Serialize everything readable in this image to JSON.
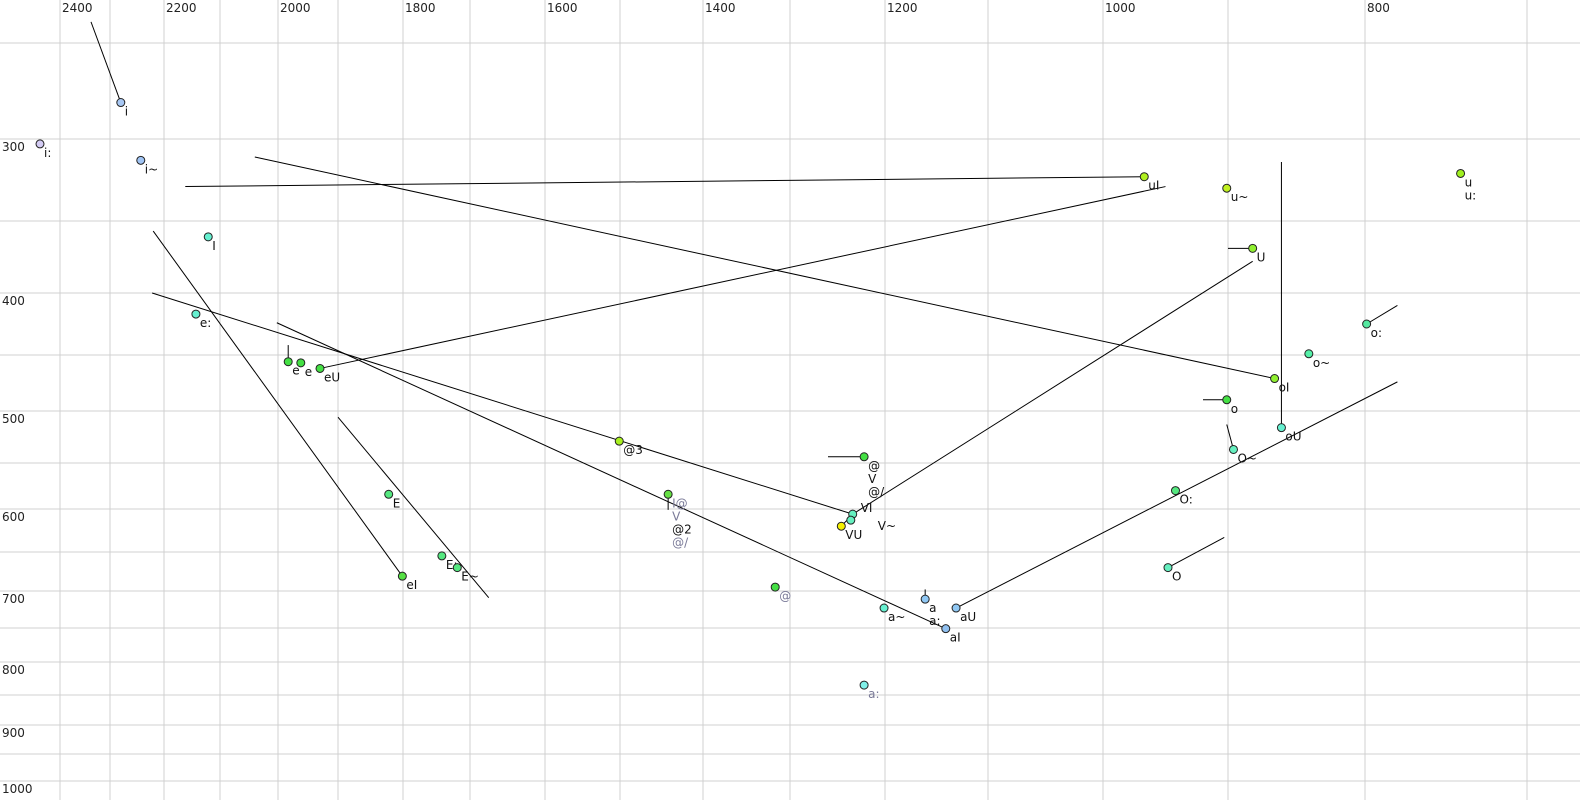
{
  "chart_data": {
    "type": "scatter",
    "title": "",
    "xlabel": "",
    "ylabel": "",
    "x_axis": {
      "reversed": true,
      "scale": "nonlinear",
      "grid_step": 100,
      "tick_labels": [
        "2400",
        "2200",
        "2000",
        "1800",
        "1600",
        "1400",
        "1200",
        "1000",
        "800"
      ],
      "ticks": [
        2400,
        2200,
        2000,
        1800,
        1600,
        1400,
        1200,
        1000,
        800
      ],
      "range": [
        2440,
        700
      ]
    },
    "y_axis": {
      "reversed": true,
      "scale": "nonlinear",
      "grid_step": 50,
      "tick_labels": [
        "300",
        "400",
        "500",
        "600",
        "700",
        "800",
        "900",
        "1000"
      ],
      "ticks": [
        300,
        400,
        500,
        600,
        700,
        800,
        900,
        1000
      ],
      "range": [
        239,
        1000
      ]
    },
    "grid": true,
    "points": [
      {
        "f2": 2280,
        "f1": 281,
        "color": "#a8c8f4",
        "labels": [
          {
            "text": "i"
          }
        ]
      },
      {
        "f2": 2440,
        "f1": 303,
        "color": "#d4ccf4",
        "labels": [
          {
            "text": "i:"
          }
        ]
      },
      {
        "f2": 2243,
        "f1": 313,
        "color": "#a0c4f4",
        "labels": [
          {
            "text": "i~"
          }
        ]
      },
      {
        "f2": 2121,
        "f1": 361,
        "color": "#66f0d0",
        "labels": [
          {
            "text": "I"
          }
        ]
      },
      {
        "f2": 2143,
        "f1": 417,
        "color": "#66f0d0",
        "labels": [
          {
            "text": "e:"
          }
        ]
      },
      {
        "f2": 1983,
        "f1": 456,
        "color": "#44e044",
        "labels": [
          {
            "text": "e"
          }
        ]
      },
      {
        "f2": 1962,
        "f1": 457,
        "color": "#44e044",
        "labels": [
          {
            "text": "e"
          }
        ]
      },
      {
        "f2": 1930,
        "f1": 462,
        "color": "#44e044",
        "labels": [
          {
            "text": "eU"
          }
        ]
      },
      {
        "f2": 1501,
        "f1": 529,
        "color": "#a8f020",
        "labels": [
          {
            "text": "@3"
          }
        ]
      },
      {
        "f2": 1222,
        "f1": 544,
        "color": "#44e044",
        "labels": [
          {
            "text": "@"
          },
          {
            "text": "V"
          },
          {
            "text": "@/"
          }
        ]
      },
      {
        "f2": 1234,
        "f1": 606,
        "color": "#66f0c0",
        "labels": [
          {
            "text": "VI"
          }
        ]
      },
      {
        "f2": 1236,
        "f1": 613,
        "color": "#66f0c0",
        "labels": [
          {
            "text": "V~"
          }
        ]
      },
      {
        "f2": 1246,
        "f1": 620,
        "color": "#f4f000",
        "labels": [
          {
            "text": "VU"
          }
        ]
      },
      {
        "f2": 1442,
        "f1": 584,
        "color": "#66e044",
        "labels": [
          {
            "text": "I@",
            "gray": true
          },
          {
            "text": "V",
            "gray": true
          },
          {
            "text": "@2"
          },
          {
            "text": "@/",
            "gray": true
          }
        ]
      },
      {
        "f2": 1317,
        "f1": 695,
        "color": "#44e044",
        "labels": [
          {
            "text": "@",
            "gray": true
          }
        ]
      },
      {
        "f2": 1201,
        "f1": 723,
        "color": "#66f0d0",
        "labels": [
          {
            "text": "a~"
          }
        ]
      },
      {
        "f2": 1161,
        "f1": 711,
        "color": "#90c8f4",
        "labels": [
          {
            "text": "a"
          },
          {
            "text": "a:"
          }
        ]
      },
      {
        "f2": 1131,
        "f1": 723,
        "color": "#90c8f4",
        "labels": [
          {
            "text": "aU"
          }
        ]
      },
      {
        "f2": 1141,
        "f1": 751,
        "color": "#90c0f0",
        "labels": [
          {
            "text": "aI"
          }
        ]
      },
      {
        "f2": 1222,
        "f1": 835,
        "color": "#80f0e8",
        "labels": [
          {
            "text": "a:",
            "gray": true
          }
        ]
      },
      {
        "f2": 1822,
        "f1": 584,
        "color": "#55e880",
        "labels": [
          {
            "text": "E"
          }
        ]
      },
      {
        "f2": 1742,
        "f1": 655,
        "color": "#55e880",
        "labels": [
          {
            "text": "E:"
          }
        ]
      },
      {
        "f2": 1719,
        "f1": 670,
        "color": "#55e880",
        "labels": [
          {
            "text": "E~"
          }
        ]
      },
      {
        "f2": 1801,
        "f1": 681,
        "color": "#55e044",
        "labels": [
          {
            "text": "eI"
          }
        ]
      },
      {
        "f2": 967,
        "f1": 323,
        "color": "#b0f020",
        "labels": [
          {
            "text": "uI"
          }
        ]
      },
      {
        "f2": 901,
        "f1": 330,
        "color": "#c0f020",
        "labels": [
          {
            "text": "u~"
          }
        ]
      },
      {
        "f2": 882,
        "f1": 369,
        "color": "#90f030",
        "labels": [
          {
            "text": "U"
          }
        ]
      },
      {
        "f2": 741,
        "f1": 321,
        "color": "#a0f020",
        "labels": [
          {
            "text": "u"
          },
          {
            "text": "u:"
          }
        ]
      },
      {
        "f2": 799,
        "f1": 425,
        "color": "#55e8a0",
        "labels": [
          {
            "text": "o:"
          }
        ]
      },
      {
        "f2": 841,
        "f1": 449,
        "color": "#55f0a8",
        "labels": [
          {
            "text": "o~"
          }
        ]
      },
      {
        "f2": 866,
        "f1": 471,
        "color": "#90f030",
        "labels": [
          {
            "text": "oI"
          }
        ]
      },
      {
        "f2": 901,
        "f1": 490,
        "color": "#44e044",
        "labels": [
          {
            "text": "o"
          }
        ]
      },
      {
        "f2": 861,
        "f1": 516,
        "color": "#66f0d0",
        "labels": [
          {
            "text": "oU"
          }
        ]
      },
      {
        "f2": 896,
        "f1": 537,
        "color": "#66f0c0",
        "labels": [
          {
            "text": "O~"
          }
        ]
      },
      {
        "f2": 942,
        "f1": 580,
        "color": "#55e880",
        "labels": [
          {
            "text": "O:"
          }
        ]
      },
      {
        "f2": 948,
        "f1": 670,
        "color": "#66f0c0",
        "labels": [
          {
            "text": "O"
          }
        ]
      }
    ],
    "trajectories": [
      {
        "from": [
          2338,
          239
        ],
        "to": [
          2280,
          281
        ]
      },
      {
        "from": [
          2162,
          329
        ],
        "to": [
          967,
          323
        ]
      },
      {
        "from": [
          2040,
          311
        ],
        "to": [
          866,
          471
        ]
      },
      {
        "from": [
          1930,
          462
        ],
        "to": [
          950,
          329
        ]
      },
      {
        "from": [
          861,
          314
        ],
        "to": [
          861,
          516
        ]
      },
      {
        "from": [
          900,
          369
        ],
        "to": [
          882,
          369
        ]
      },
      {
        "from": [
          2220,
          357
        ],
        "to": [
          1801,
          681
        ]
      },
      {
        "from": [
          2222,
          400
        ],
        "to": [
          1234,
          606
        ]
      },
      {
        "from": [
          2002,
          424
        ],
        "to": [
          1141,
          751
        ]
      },
      {
        "from": [
          1900,
          506
        ],
        "to": [
          1675,
          709
        ]
      },
      {
        "from": [
          1234,
          606
        ],
        "to": [
          882,
          378
        ]
      },
      {
        "from": [
          1131,
          723
        ],
        "to": [
          780,
          474
        ]
      },
      {
        "from": [
          799,
          425
        ],
        "to": [
          780,
          410
        ]
      },
      {
        "from": [
          948,
          670
        ],
        "to": [
          903,
          633
        ]
      },
      {
        "from": [
          901,
          513
        ],
        "to": [
          896,
          537
        ]
      },
      {
        "from": [
          920,
          490
        ],
        "to": [
          901,
          490
        ]
      },
      {
        "from": [
          1260,
          544
        ],
        "to": [
          1222,
          544
        ]
      },
      {
        "from": [
          1983,
          442
        ],
        "to": [
          1983,
          456
        ]
      },
      {
        "from": [
          1161,
          698
        ],
        "to": [
          1161,
          711
        ]
      },
      {
        "from": [
          1442,
          584
        ],
        "to": [
          1442,
          601
        ]
      },
      {
        "from": [
          1246,
          620
        ],
        "to": [
          1234,
          606
        ]
      }
    ]
  }
}
